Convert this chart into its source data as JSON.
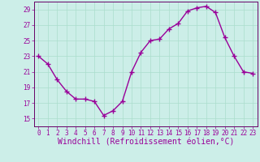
{
  "x": [
    0,
    1,
    2,
    3,
    4,
    5,
    6,
    7,
    8,
    9,
    10,
    11,
    12,
    13,
    14,
    15,
    16,
    17,
    18,
    19,
    20,
    21,
    22,
    23
  ],
  "y": [
    23,
    22,
    20,
    18.5,
    17.5,
    17.5,
    17.2,
    15.4,
    16,
    17.2,
    21,
    23.5,
    25,
    25.2,
    26.5,
    27.2,
    28.8,
    29.2,
    29.4,
    28.6,
    25.4,
    23,
    21,
    20.8
  ],
  "line_color": "#990099",
  "marker": "+",
  "marker_size": 4,
  "marker_color": "#990099",
  "bg_color": "#cceee8",
  "grid_color": "#aaddcc",
  "tick_label_color": "#990099",
  "xlabel": "Windchill (Refroidissement éolien,°C)",
  "xlabel_color": "#990099",
  "xlabel_fontsize": 7,
  "ylim": [
    14,
    30
  ],
  "yticks": [
    15,
    17,
    19,
    21,
    23,
    25,
    27,
    29
  ],
  "xticks": [
    0,
    1,
    2,
    3,
    4,
    5,
    6,
    7,
    8,
    9,
    10,
    11,
    12,
    13,
    14,
    15,
    16,
    17,
    18,
    19,
    20,
    21,
    22,
    23
  ],
  "spine_color": "#660066",
  "tick_fontsize": 5.5,
  "line_width": 1.0
}
